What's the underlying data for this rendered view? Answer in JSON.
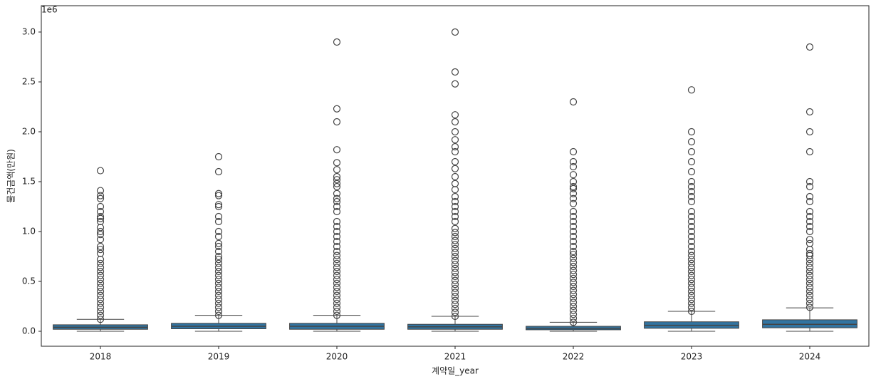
{
  "chart_data": {
    "type": "box",
    "x_label": "계약일_year",
    "y_label": "물건금액(만원)",
    "y_offset_label": "1e6",
    "color": "#3274a1",
    "categories": [
      "2018",
      "2019",
      "2020",
      "2021",
      "2022",
      "2023",
      "2024"
    ],
    "whislo": [
      0,
      0,
      0,
      0,
      0,
      0,
      0
    ],
    "q1": [
      0.02,
      0.025,
      0.02,
      0.02,
      0.015,
      0.03,
      0.035
    ],
    "median": [
      0.04,
      0.05,
      0.05,
      0.045,
      0.03,
      0.06,
      0.07
    ],
    "q3": [
      0.065,
      0.08,
      0.08,
      0.07,
      0.05,
      0.095,
      0.115
    ],
    "whishi": [
      0.12,
      0.16,
      0.16,
      0.15,
      0.09,
      0.2,
      0.235
    ],
    "fliers": [
      [
        0.12,
        0.16,
        0.2,
        0.24,
        0.28,
        0.32,
        0.36,
        0.4,
        0.44,
        0.48,
        0.52,
        0.56,
        0.6,
        0.64,
        0.68,
        0.72,
        0.78,
        0.82,
        0.85,
        0.92,
        0.97,
        1.0,
        1.04,
        1.1,
        1.13,
        1.15,
        1.2,
        1.25,
        1.33,
        1.36,
        1.41,
        1.61
      ],
      [
        0.16,
        0.2,
        0.24,
        0.28,
        0.32,
        0.36,
        0.4,
        0.44,
        0.48,
        0.52,
        0.56,
        0.6,
        0.64,
        0.68,
        0.72,
        0.75,
        0.8,
        0.85,
        0.88,
        0.95,
        1.0,
        1.1,
        1.15,
        1.25,
        1.27,
        1.36,
        1.38,
        1.6,
        1.75
      ],
      [
        0.16,
        0.2,
        0.24,
        0.28,
        0.32,
        0.36,
        0.4,
        0.44,
        0.48,
        0.52,
        0.56,
        0.6,
        0.64,
        0.68,
        0.72,
        0.76,
        0.8,
        0.85,
        0.9,
        0.95,
        1.0,
        1.05,
        1.1,
        1.2,
        1.25,
        1.3,
        1.33,
        1.38,
        1.45,
        1.48,
        1.52,
        1.55,
        1.62,
        1.69,
        1.82,
        2.1,
        2.23,
        2.9
      ],
      [
        0.15,
        0.19,
        0.23,
        0.27,
        0.31,
        0.35,
        0.39,
        0.43,
        0.47,
        0.51,
        0.55,
        0.59,
        0.63,
        0.67,
        0.71,
        0.75,
        0.79,
        0.83,
        0.87,
        0.91,
        0.95,
        0.99,
        1.03,
        1.1,
        1.15,
        1.2,
        1.25,
        1.3,
        1.35,
        1.42,
        1.48,
        1.55,
        1.63,
        1.7,
        1.8,
        1.85,
        1.92,
        2.0,
        2.1,
        2.17,
        2.48,
        2.6,
        3.0
      ],
      [
        0.09,
        0.13,
        0.17,
        0.21,
        0.25,
        0.29,
        0.33,
        0.37,
        0.41,
        0.45,
        0.49,
        0.53,
        0.57,
        0.61,
        0.65,
        0.69,
        0.73,
        0.77,
        0.8,
        0.85,
        0.9,
        0.95,
        1.0,
        1.05,
        1.1,
        1.15,
        1.2,
        1.28,
        1.33,
        1.38,
        1.43,
        1.45,
        1.5,
        1.57,
        1.65,
        1.7,
        1.8,
        2.3
      ],
      [
        0.2,
        0.24,
        0.28,
        0.32,
        0.36,
        0.4,
        0.44,
        0.48,
        0.52,
        0.56,
        0.6,
        0.64,
        0.68,
        0.72,
        0.76,
        0.8,
        0.85,
        0.9,
        0.95,
        1.0,
        1.05,
        1.1,
        1.15,
        1.2,
        1.3,
        1.35,
        1.4,
        1.45,
        1.5,
        1.6,
        1.7,
        1.8,
        1.9,
        2.0,
        2.42
      ],
      [
        0.24,
        0.28,
        0.32,
        0.36,
        0.4,
        0.44,
        0.48,
        0.52,
        0.56,
        0.6,
        0.64,
        0.68,
        0.72,
        0.76,
        0.78,
        0.82,
        0.88,
        0.92,
        1.0,
        1.05,
        1.1,
        1.15,
        1.2,
        1.3,
        1.35,
        1.45,
        1.5,
        1.8,
        2.0,
        2.2,
        2.85
      ]
    ],
    "ylim": [
      -0.15,
      3.264
    ],
    "yticks": [
      {
        "value": 0,
        "label": "0.0"
      },
      0.5,
      {
        "value": 1,
        "label": "1.0"
      },
      1.5,
      {
        "value": 2,
        "label": "2.0"
      },
      2.5,
      {
        "value": 3,
        "label": "3.0"
      }
    ]
  }
}
